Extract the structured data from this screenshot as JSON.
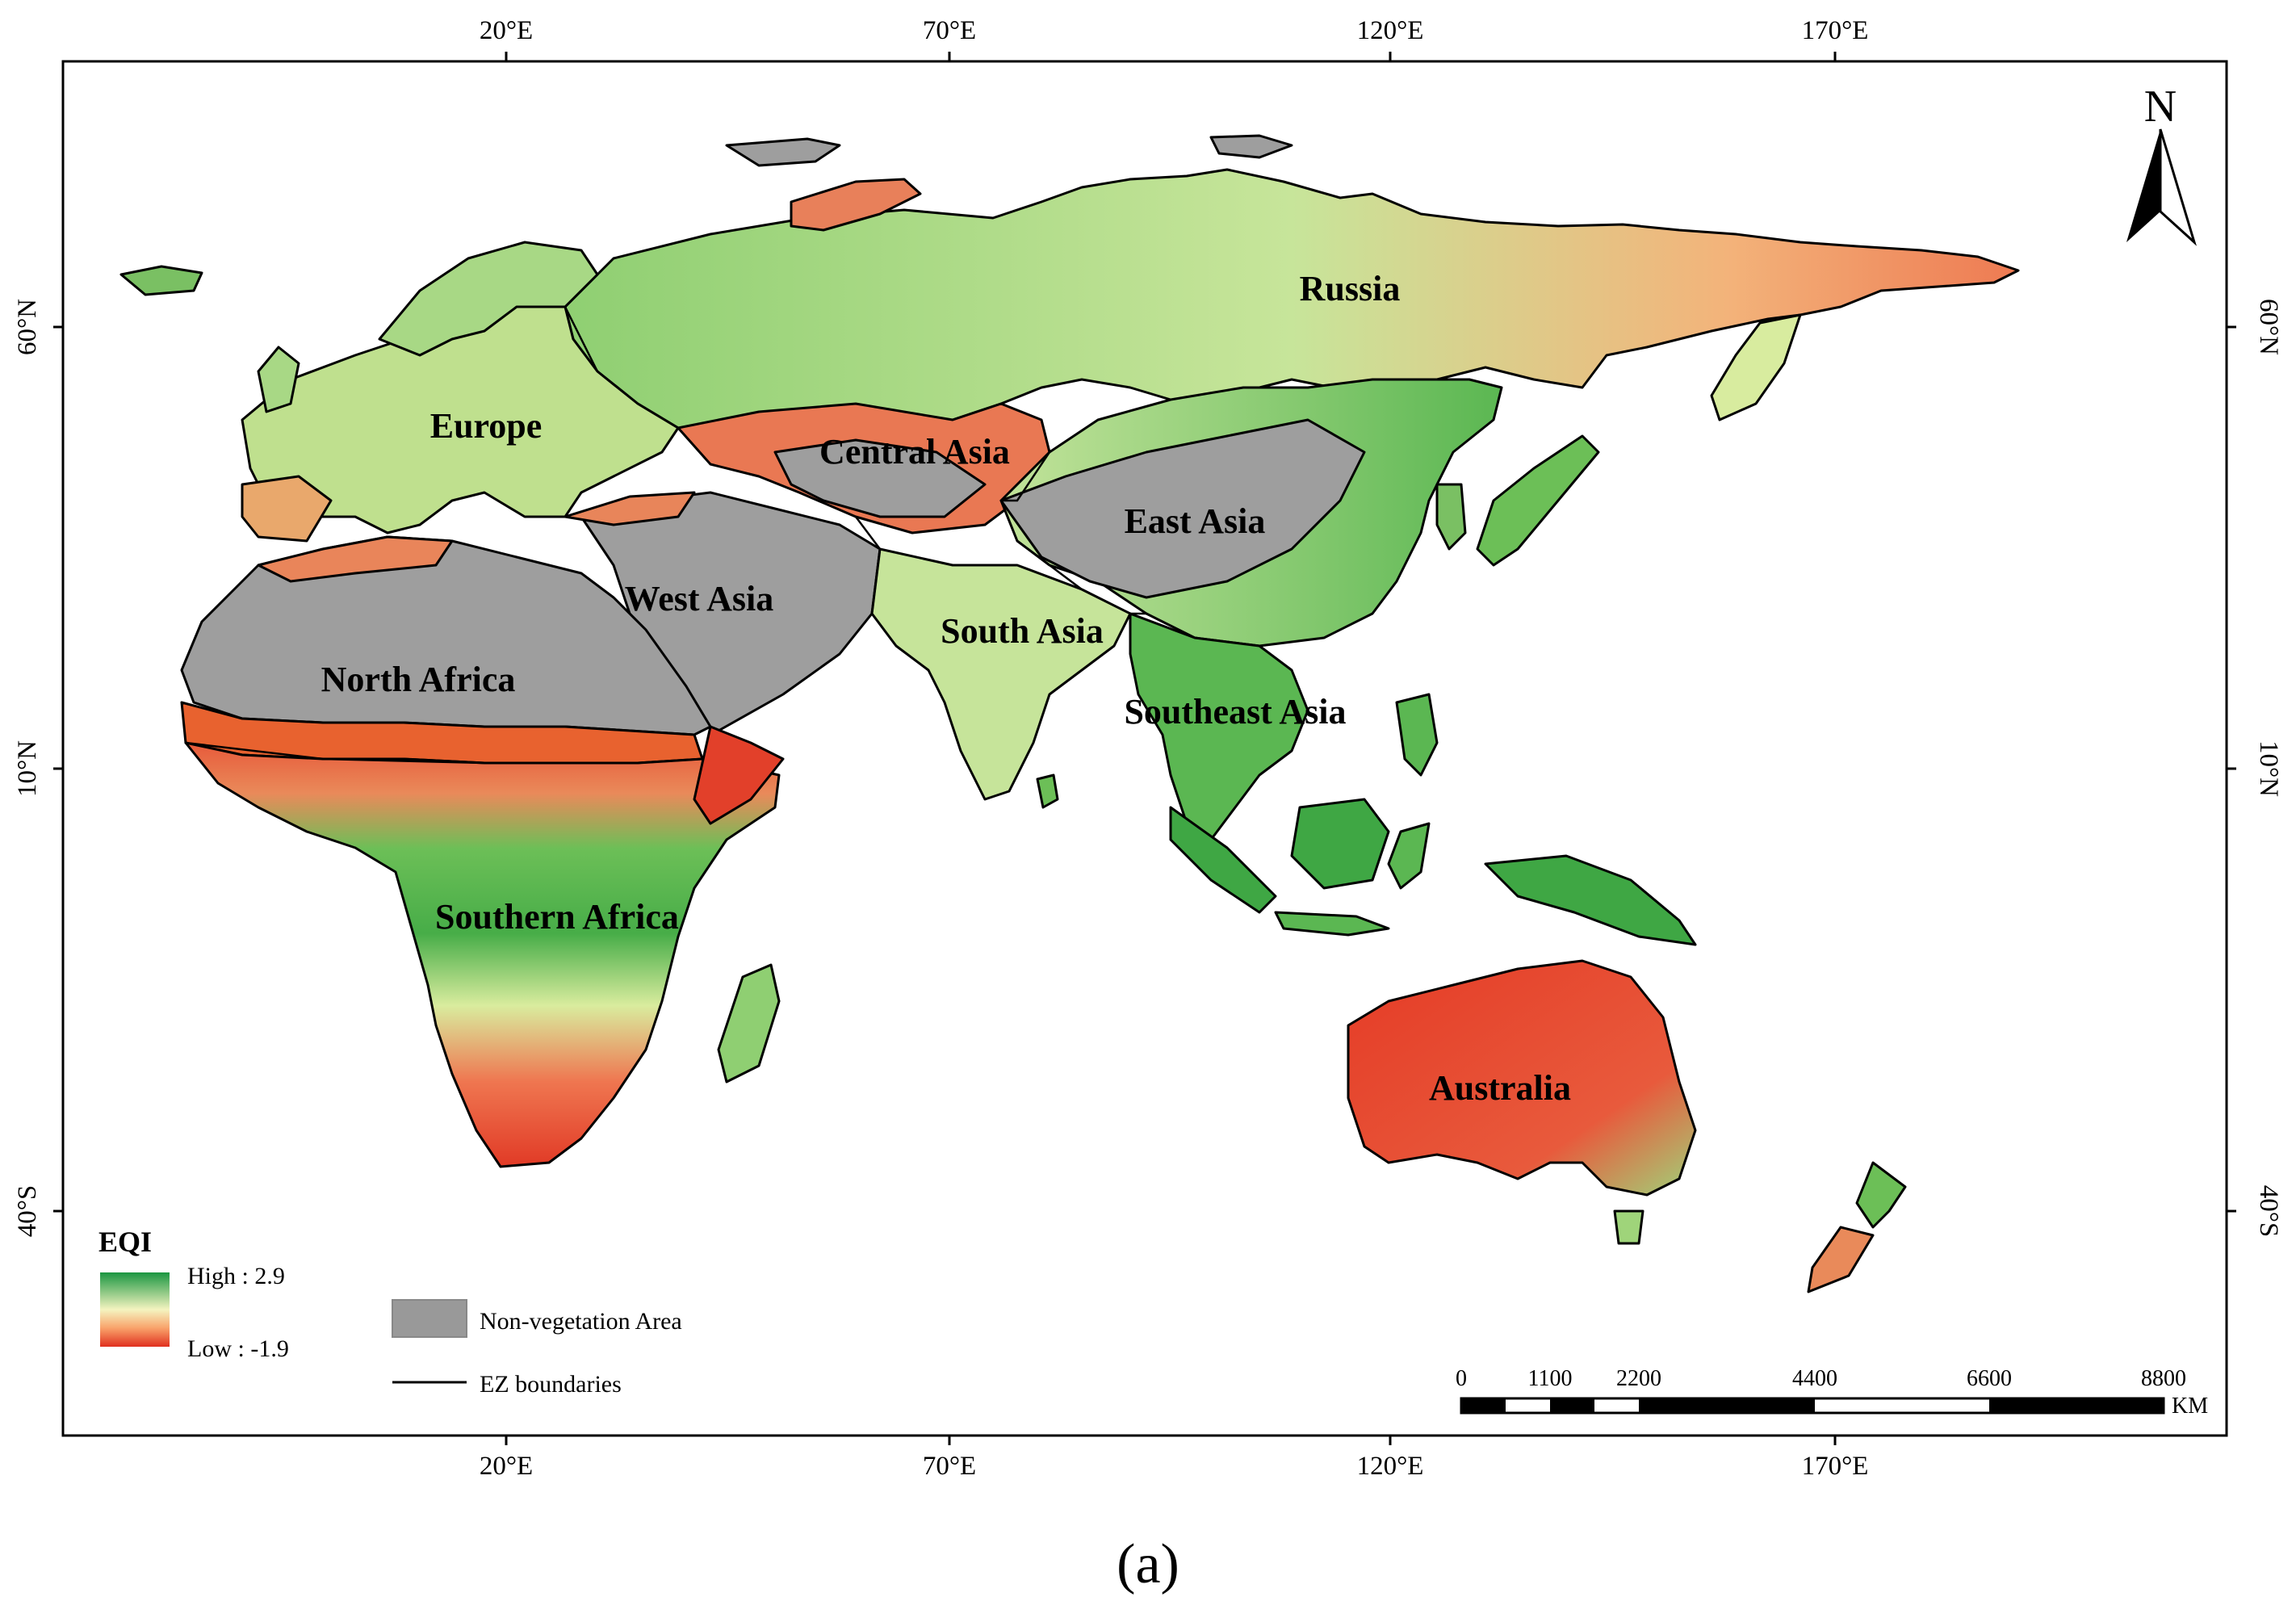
{
  "figure_caption": "(a)",
  "axes": {
    "lon_labels": [
      "20°E",
      "70°E",
      "120°E",
      "170°E"
    ],
    "lat_labels": [
      "60°N",
      "10°N",
      "40°S"
    ]
  },
  "regions": [
    {
      "key": "russia",
      "label": "Russia"
    },
    {
      "key": "europe",
      "label": "Europe"
    },
    {
      "key": "central-asia",
      "label": "Central Asia"
    },
    {
      "key": "east-asia",
      "label": "East Asia"
    },
    {
      "key": "west-asia",
      "label": "West Asia"
    },
    {
      "key": "south-asia",
      "label": "South Asia"
    },
    {
      "key": "north-africa",
      "label": "North Africa"
    },
    {
      "key": "southeast-asia",
      "label": "Southeast Asia"
    },
    {
      "key": "southern-africa",
      "label": "Southern Africa"
    },
    {
      "key": "australia",
      "label": "Australia"
    }
  ],
  "north_arrow": {
    "letter": "N"
  },
  "legend": {
    "title": "EQI",
    "high_label": "High : 2.9",
    "low_label": "Low : -1.9",
    "non_vegetation_label": "Non-vegetation Area",
    "boundaries_label": "EZ boundaries"
  },
  "scale_bar": {
    "ticks": [
      "0",
      "1100",
      "2200",
      "4400",
      "6600",
      "8800"
    ],
    "unit": "KM"
  },
  "colors": {
    "high": "#1a9641",
    "mid": "#f7f7c0",
    "low": "#e0301e",
    "non_vegetation": "#999999"
  }
}
